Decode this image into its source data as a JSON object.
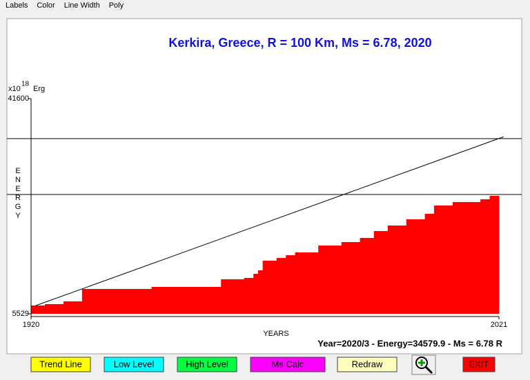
{
  "menu": [
    "Labels",
    "Color",
    "Line Width",
    "Poly"
  ],
  "chart_data": {
    "type": "step-area",
    "title": "Kerkira, Greece, R = 100 Km, Ms = 6.78, 2020",
    "y_unit": "x10",
    "y_unit_exp": "18",
    "y_unit_name": "Erg",
    "y_label": "ENERGY",
    "x_label": "YEARS",
    "color": "#ff0000",
    "x": [
      1920,
      1923,
      1927,
      1931,
      1946,
      1961,
      1966,
      1968,
      1969,
      1970,
      1973,
      1975,
      1977,
      1982,
      1987,
      1991,
      1994,
      1997,
      2001,
      2005,
      2007,
      2011,
      2017,
      2019
    ],
    "values": [
      6916,
      7150,
      7610,
      9690,
      10040,
      11310,
      11540,
      12230,
      12810,
      14430,
      14890,
      15350,
      15820,
      16970,
      17550,
      18240,
      19400,
      20330,
      21370,
      22290,
      23680,
      24260,
      24720,
      25300
    ],
    "trend": {
      "x": [
        1921,
        2022
      ],
      "values": [
        6900,
        35200
      ]
    },
    "levels": [
      34890,
      25530
    ],
    "xlim": [
      1920,
      2021
    ],
    "ylim": [
      5529,
      41600
    ],
    "xticks": [
      1920,
      2021
    ],
    "yticks": [
      5529,
      41600
    ]
  },
  "status": "Year=2020/3 - Energy=34579.9 - Ms = 6.78 R",
  "buttons": [
    "Trend Line",
    "Low Level",
    "High Level",
    "Ms Calc",
    "Redraw",
    "EXIT"
  ]
}
